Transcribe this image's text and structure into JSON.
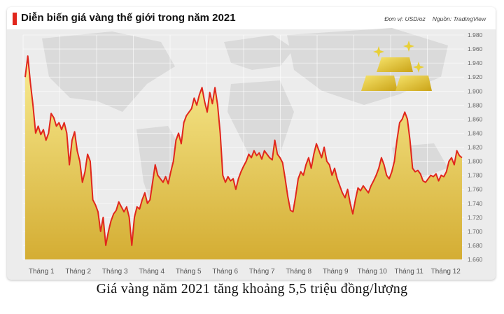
{
  "header": {
    "title": "Diễn biến giá vàng thế giới trong năm 2021",
    "unit": "Đơn vị: USD/oz",
    "source": "Nguồn: TradingView"
  },
  "caption": "Giá vàng năm 2021 tăng khoảng 5,5 triệu đồng/lượng",
  "colors": {
    "accent": "#e1261c",
    "line": "#e1261c",
    "area_top": "#f7e47a",
    "area_bottom": "#c9a227"
  },
  "chart_data": {
    "type": "area",
    "title": "Diễn biến giá vàng thế giới trong năm 2021",
    "xlabel": "",
    "ylabel": "",
    "ylim": [
      1660,
      1980
    ],
    "yticks": [
      "1.660",
      "1.680",
      "1.700",
      "1.720",
      "1.740",
      "1.760",
      "1.780",
      "1.800",
      "1.820",
      "1.840",
      "1.860",
      "1.880",
      "1.900",
      "1.920",
      "1.940",
      "1.960",
      "1.980"
    ],
    "xticks": [
      "Tháng 1",
      "Tháng 2",
      "Tháng 3",
      "Tháng 4",
      "Tháng 5",
      "Tháng 6",
      "Tháng 7",
      "Tháng 8",
      "Tháng 9",
      "Tháng 10",
      "Tháng 11",
      "Tháng 12"
    ],
    "x_month_start": 1,
    "series": [
      {
        "values": [
          1920,
          1950,
          1912,
          1880,
          1840,
          1850,
          1838,
          1845,
          1830,
          1840,
          1868,
          1862,
          1850,
          1855,
          1845,
          1855,
          1840,
          1795,
          1830,
          1842,
          1815,
          1800,
          1770,
          1785,
          1810,
          1800,
          1745,
          1738,
          1728,
          1700,
          1720,
          1680,
          1700,
          1715,
          1725,
          1730,
          1742,
          1735,
          1728,
          1735,
          1720,
          1680,
          1720,
          1735,
          1732,
          1745,
          1755,
          1740,
          1745,
          1770,
          1795,
          1780,
          1775,
          1770,
          1778,
          1768,
          1785,
          1800,
          1830,
          1840,
          1825,
          1855,
          1865,
          1870,
          1875,
          1890,
          1880,
          1895,
          1905,
          1885,
          1870,
          1898,
          1882,
          1905,
          1880,
          1840,
          1780,
          1770,
          1778,
          1772,
          1775,
          1760,
          1775,
          1785,
          1793,
          1800,
          1810,
          1805,
          1815,
          1808,
          1812,
          1803,
          1815,
          1810,
          1805,
          1802,
          1830,
          1810,
          1805,
          1798,
          1775,
          1750,
          1730,
          1728,
          1750,
          1775,
          1785,
          1780,
          1795,
          1805,
          1790,
          1810,
          1825,
          1815,
          1805,
          1820,
          1800,
          1795,
          1780,
          1790,
          1775,
          1765,
          1755,
          1748,
          1760,
          1740,
          1725,
          1745,
          1762,
          1758,
          1765,
          1760,
          1755,
          1765,
          1772,
          1780,
          1790,
          1805,
          1795,
          1780,
          1775,
          1785,
          1800,
          1830,
          1855,
          1860,
          1870,
          1860,
          1830,
          1790,
          1785,
          1787,
          1782,
          1772,
          1770,
          1775,
          1780,
          1778,
          1782,
          1772,
          1780,
          1778,
          1785,
          1800,
          1805,
          1795,
          1815,
          1808,
          1805
        ]
      }
    ]
  }
}
